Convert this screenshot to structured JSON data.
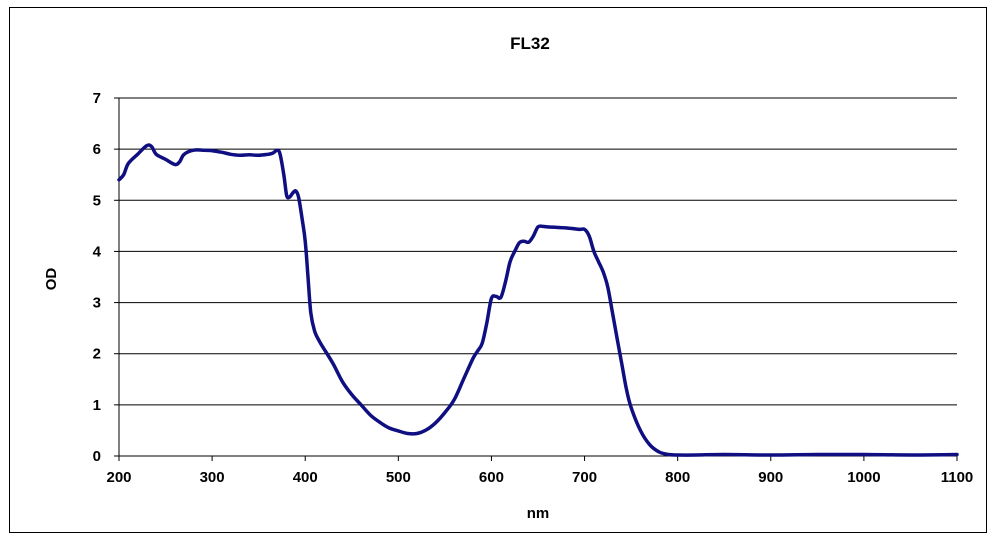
{
  "chart_data": {
    "type": "line",
    "title": "FL32",
    "xlabel": "nm",
    "ylabel": "OD",
    "xlim": [
      200,
      1100
    ],
    "ylim": [
      0,
      7
    ],
    "xticks": [
      200,
      300,
      400,
      500,
      600,
      700,
      800,
      900,
      1000,
      1100
    ],
    "yticks": [
      0,
      1,
      2,
      3,
      4,
      5,
      6,
      7
    ],
    "grid": "horizontal",
    "legend": "none",
    "series": [
      {
        "color": "#0f0f82",
        "x": [
          200,
          205,
          210,
          220,
          230,
          235,
          240,
          250,
          260,
          265,
          270,
          280,
          290,
          300,
          310,
          320,
          330,
          340,
          350,
          360,
          365,
          370,
          373,
          377,
          380,
          383,
          387,
          390,
          393,
          397,
          400,
          403,
          406,
          410,
          415,
          420,
          430,
          440,
          450,
          460,
          470,
          480,
          490,
          500,
          510,
          520,
          530,
          540,
          550,
          560,
          570,
          580,
          585,
          590,
          595,
          600,
          605,
          610,
          615,
          620,
          625,
          630,
          635,
          640,
          645,
          650,
          655,
          660,
          670,
          680,
          690,
          695,
          700,
          705,
          710,
          715,
          720,
          725,
          730,
          735,
          740,
          745,
          750,
          760,
          770,
          780,
          790,
          800,
          820,
          850,
          900,
          950,
          1000,
          1050,
          1100
        ],
        "y": [
          5.4,
          5.5,
          5.72,
          5.9,
          6.07,
          6.05,
          5.9,
          5.8,
          5.7,
          5.75,
          5.9,
          5.98,
          5.98,
          5.97,
          5.94,
          5.9,
          5.88,
          5.89,
          5.88,
          5.9,
          5.92,
          5.98,
          5.9,
          5.5,
          5.1,
          5.06,
          5.15,
          5.18,
          5.05,
          4.6,
          4.2,
          3.5,
          2.8,
          2.45,
          2.25,
          2.1,
          1.8,
          1.45,
          1.2,
          1.0,
          0.8,
          0.66,
          0.55,
          0.49,
          0.44,
          0.44,
          0.51,
          0.65,
          0.85,
          1.1,
          1.5,
          1.9,
          2.05,
          2.2,
          2.6,
          3.08,
          3.12,
          3.1,
          3.4,
          3.8,
          4.0,
          4.17,
          4.2,
          4.18,
          4.3,
          4.48,
          4.49,
          4.48,
          4.47,
          4.46,
          4.44,
          4.43,
          4.43,
          4.3,
          4.0,
          3.8,
          3.6,
          3.3,
          2.8,
          2.3,
          1.8,
          1.3,
          0.95,
          0.5,
          0.22,
          0.08,
          0.03,
          0.02,
          0.02,
          0.03,
          0.02,
          0.03,
          0.03,
          0.02,
          0.03
        ]
      }
    ]
  }
}
